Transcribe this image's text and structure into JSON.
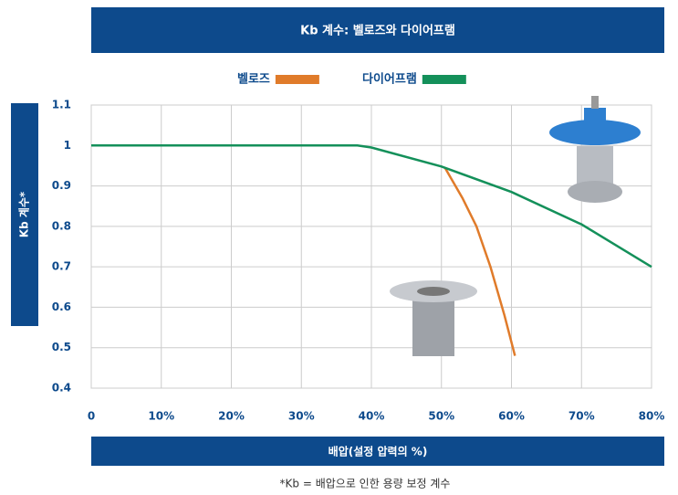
{
  "chart_data": {
    "type": "line",
    "title": "Kb 계수: 벨로즈와 다이어프램",
    "x_label": "배압(설정 압력의 %)",
    "y_label": "Kb 계수*",
    "footnote": "*Kb = 배압으로 인한 용량 보정 계수",
    "xlim": [
      0,
      80
    ],
    "xticks": [
      0,
      {
        "value": 10,
        "label": "10%"
      },
      {
        "value": 20,
        "label": "20%"
      },
      {
        "value": 30,
        "label": "30%"
      },
      {
        "value": 40,
        "label": "40%"
      },
      {
        "value": 50,
        "label": "50%"
      },
      {
        "value": 60,
        "label": "60%"
      },
      {
        "value": 70,
        "label": "70%"
      },
      {
        "value": 80,
        "label": "80%"
      }
    ],
    "ylim": [
      0.4,
      1.1
    ],
    "yticks": [
      0.4,
      0.5,
      0.6,
      0.7,
      0.8,
      0.9,
      1,
      1.1
    ],
    "grid": true,
    "series": [
      {
        "name": "벨로즈",
        "color": "#e07b2a",
        "x": [
          50.5,
          53,
          55,
          57,
          59,
          60.5
        ],
        "values": [
          0.945,
          0.87,
          0.8,
          0.7,
          0.58,
          0.48
        ]
      },
      {
        "name": "다이어프램",
        "color": "#14905a",
        "x": [
          0,
          38,
          40,
          50,
          60,
          70,
          80
        ],
        "values": [
          1,
          1,
          0.995,
          0.948,
          0.885,
          0.805,
          0.7
        ]
      }
    ]
  }
}
